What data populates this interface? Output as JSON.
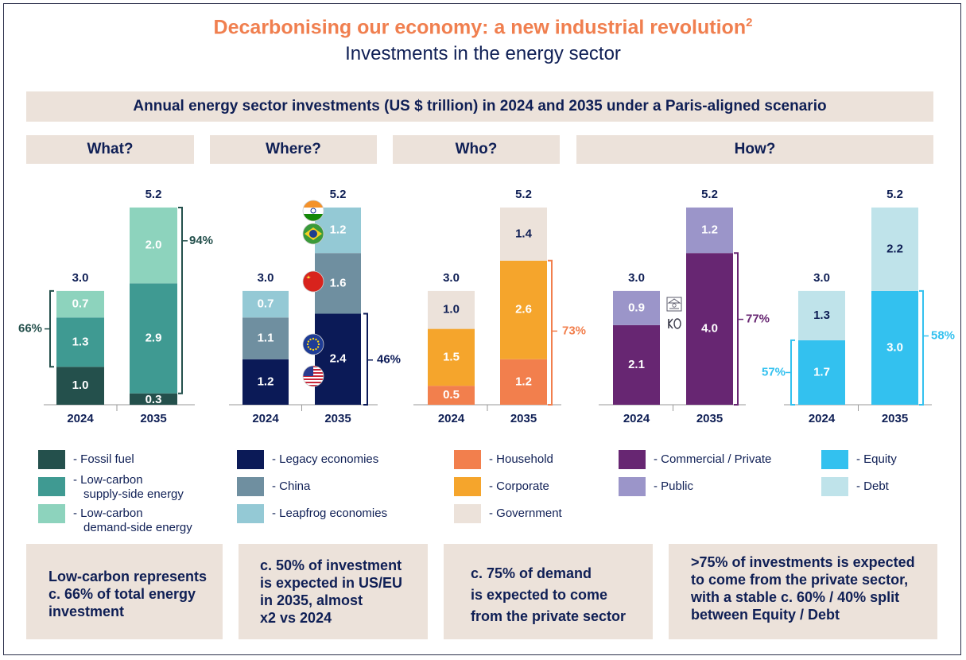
{
  "header": {
    "title": "Decarbonising our economy: a new industrial revolution",
    "title_sup": "2",
    "subtitle": "Investments in the energy sector",
    "banner": "Annual energy sector investments (US $ trillion) in 2024 and 2035 under a Paris-aligned scenario"
  },
  "sections": {
    "what": "What?",
    "where": "Where?",
    "who": "Who?",
    "how": "How?"
  },
  "colors": {
    "fossil": "#24504c",
    "supply": "#3f9a92",
    "demand": "#8dd3bd",
    "legacy": "#0b1a57",
    "china": "#6f8fa0",
    "leapfrog": "#94c9d5",
    "household": "#f27f4d",
    "corporate": "#f5a52c",
    "government": "#ece2da",
    "commercial": "#672672",
    "public": "#9b95c9",
    "equity": "#33c1ef",
    "debt": "#bfe3ea",
    "navy": "#0f1f55"
  },
  "chart_data": [
    {
      "type": "bar",
      "stacked": true,
      "name": "What?",
      "categories": [
        "2024",
        "2035"
      ],
      "series": [
        {
          "name": "Fossil fuel",
          "values": [
            1.0,
            0.3
          ]
        },
        {
          "name": "Low-carbon supply-side energy",
          "values": [
            1.3,
            2.9
          ]
        },
        {
          "name": "Low-carbon demand-side energy",
          "values": [
            0.7,
            2.0
          ]
        }
      ],
      "totals": [
        "3.0",
        "5.2"
      ],
      "annotations": [
        "66%",
        "94%"
      ]
    },
    {
      "type": "bar",
      "stacked": true,
      "name": "Where?",
      "categories": [
        "2024",
        "2035"
      ],
      "series": [
        {
          "name": "Legacy economies",
          "values": [
            1.2,
            2.4
          ]
        },
        {
          "name": "China",
          "values": [
            1.1,
            1.6
          ]
        },
        {
          "name": "Leapfrog economies",
          "values": [
            0.7,
            1.2
          ]
        }
      ],
      "totals": [
        "3.0",
        "5.2"
      ],
      "annotations": [
        "46%"
      ],
      "flag_icons": [
        "india-flag-icon",
        "brazil-flag-icon",
        "china-flag-icon",
        "eu-flag-icon",
        "usa-flag-icon"
      ]
    },
    {
      "type": "bar",
      "stacked": true,
      "name": "Who?",
      "categories": [
        "2024",
        "2035"
      ],
      "series": [
        {
          "name": "Household",
          "values": [
            0.5,
            1.2
          ]
        },
        {
          "name": "Corporate",
          "values": [
            1.5,
            2.6
          ]
        },
        {
          "name": "Government",
          "values": [
            1.0,
            1.4
          ]
        }
      ],
      "totals": [
        "3.0",
        "5.2"
      ],
      "annotations": [
        "73%"
      ]
    },
    {
      "type": "bar",
      "stacked": true,
      "name": "How? (sector)",
      "categories": [
        "2024",
        "2035"
      ],
      "series": [
        {
          "name": "Commercial / Private",
          "values": [
            2.1,
            4.0
          ]
        },
        {
          "name": "Public",
          "values": [
            0.9,
            1.2
          ]
        }
      ],
      "totals": [
        "3.0",
        "5.2"
      ],
      "annotations": [
        "77%"
      ]
    },
    {
      "type": "bar",
      "stacked": true,
      "name": "How? (instrument)",
      "categories": [
        "2024",
        "2035"
      ],
      "series": [
        {
          "name": "Equity",
          "values": [
            1.7,
            3.0
          ]
        },
        {
          "name": "Debt",
          "values": [
            1.3,
            2.2
          ]
        }
      ],
      "totals": [
        "3.0",
        "5.2"
      ],
      "annotations": [
        "57%",
        "58%"
      ]
    }
  ],
  "legend": {
    "what": [
      {
        "line1": "- Fossil fuel",
        "line2": ""
      },
      {
        "line1": "- Low-carbon",
        "line2": "supply-side energy"
      },
      {
        "line1": "- Low-carbon",
        "line2": "demand-side energy"
      }
    ],
    "where": [
      "- Legacy economies",
      "- China",
      "- Leapfrog economies"
    ],
    "who": [
      "- Household",
      "- Corporate",
      "- Government"
    ],
    "how_sector": [
      "- Commercial / Private",
      "- Public"
    ],
    "how_instrument": [
      "- Equity",
      "- Debt"
    ]
  },
  "notes": {
    "what": [
      "Low-carbon represents",
      "c. 66% of total energy",
      "investment"
    ],
    "where": [
      "c. 50% of investment",
      "is expected in US/EU",
      "in 2035, almost",
      "x2 vs 2024"
    ],
    "who": [
      "c. 75% of demand",
      "is expected to come",
      "from the private sector"
    ],
    "how": [
      ">75% of investments is expected",
      "to come from the private sector,",
      "with a stable c. 60% / 40% split",
      "between Equity / Debt"
    ]
  }
}
